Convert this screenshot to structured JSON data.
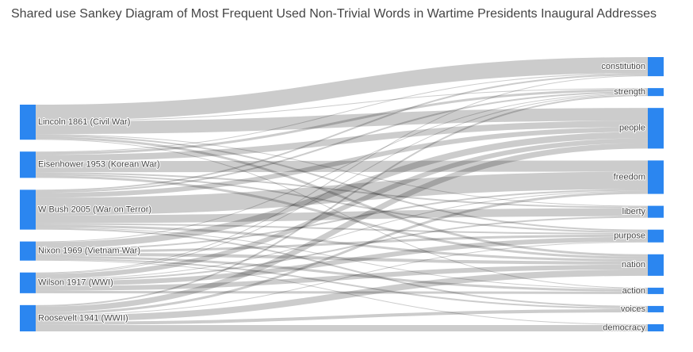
{
  "chart_data": {
    "type": "sankey",
    "title": "Shared use Sankey Diagram of Most Frequent Used Non-Trivial Words in Wartime Presidents Inaugural Addresses",
    "nodes": [
      "Lincoln 1861 (Civil War)",
      "Eisenhower 1953 (Korean War)",
      "W Bush 2005 (War on Terror)",
      "Nixon 1969 (Vietnam War)",
      "Wilson 1917 (WWI)",
      "Roosevelt 1941 (WWII)",
      "constitution",
      "strength",
      "people",
      "freedom",
      "liberty",
      "purpose",
      "nation",
      "action",
      "voices",
      "democracy"
    ],
    "node_color": "#2b86f0",
    "link_color": "rgba(0,0,0,0.2)",
    "links": {
      "source": [
        0,
        0,
        0,
        0,
        0,
        0,
        0,
        1,
        1,
        1,
        1,
        1,
        1,
        1,
        2,
        2,
        2,
        2,
        2,
        2,
        2,
        2,
        2,
        3,
        3,
        3,
        3,
        3,
        3,
        3,
        3,
        4,
        4,
        4,
        4,
        4,
        4,
        4,
        4,
        5,
        5,
        5,
        5,
        5,
        5,
        5
      ],
      "target": [
        6,
        8,
        12,
        10,
        11,
        13,
        7,
        9,
        8,
        7,
        12,
        11,
        10,
        6,
        9,
        10,
        8,
        12,
        11,
        6,
        14,
        13,
        7,
        8,
        12,
        11,
        13,
        14,
        9,
        7,
        15,
        11,
        12,
        8,
        13,
        6,
        10,
        9,
        7,
        12,
        15,
        8,
        9,
        14,
        11,
        7
      ],
      "value": [
        20,
        16,
        3,
        1,
        2,
        1,
        1,
        14,
        8,
        3,
        3,
        2,
        2,
        1,
        22,
        10,
        6,
        3,
        2,
        2,
        2,
        1,
        2,
        8,
        4,
        3,
        3,
        2,
        2,
        1,
        1,
        6,
        6,
        6,
        3,
        1,
        2,
        1,
        1,
        8,
        8,
        7,
        3,
        4,
        1,
        2
      ]
    }
  }
}
